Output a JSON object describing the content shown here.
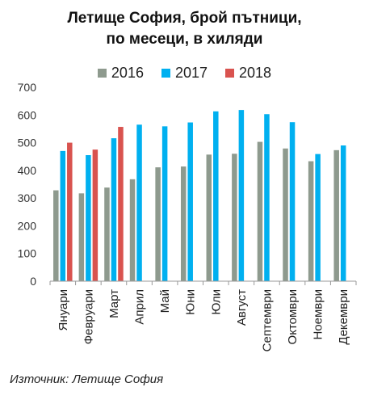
{
  "chart_data": {
    "type": "bar",
    "title_lines": [
      "Летище София, брой пътници,",
      "по месеци, в хиляди"
    ],
    "categories": [
      "Януари",
      "Февруари",
      "Март",
      "Април",
      "Май",
      "Юни",
      "Юли",
      "Август",
      "Септември",
      "Октомври",
      "Ноември",
      "Декември"
    ],
    "series": [
      {
        "name": "2016",
        "color": "#8E9A8E",
        "values": [
          328,
          317,
          338,
          368,
          411,
          414,
          457,
          460,
          503,
          479,
          433,
          473
        ]
      },
      {
        "name": "2017",
        "color": "#00B0F0",
        "values": [
          470,
          455,
          516,
          565,
          559,
          573,
          613,
          618,
          603,
          574,
          459,
          490
        ]
      },
      {
        "name": "2018",
        "color": "#D9534F",
        "values": [
          500,
          475,
          557,
          null,
          null,
          null,
          null,
          null,
          null,
          null,
          null,
          null
        ]
      }
    ],
    "ylim": [
      0,
      700
    ],
    "yticks": [
      0,
      100,
      200,
      300,
      400,
      500,
      600,
      700
    ],
    "grid": false,
    "legend_position": "top-center"
  },
  "source": "Източник: Летище София"
}
